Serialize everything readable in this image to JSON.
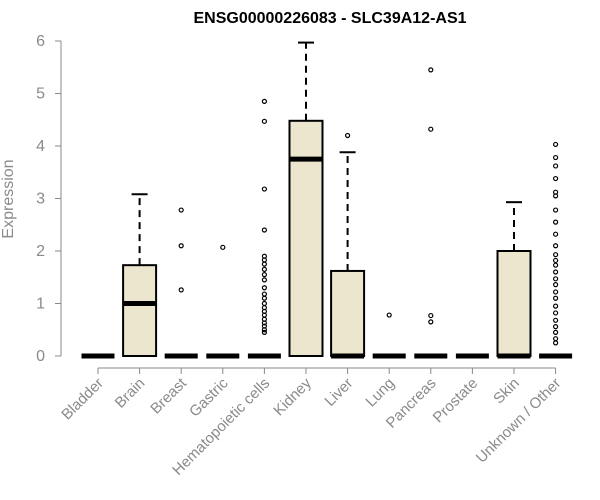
{
  "chart_data": {
    "type": "boxplot",
    "title": "ENSG00000226083 - SLC39A12-AS1",
    "xlabel": "",
    "ylabel": "Expression",
    "ylim": [
      0,
      6
    ],
    "yticks": [
      0,
      1,
      2,
      3,
      4,
      5,
      6
    ],
    "box_fill": "#ede6cf",
    "categories": [
      "Bladder",
      "Brain",
      "Breast",
      "Gastric",
      "Hematopoietic cells",
      "Kidney",
      "Liver",
      "Lung",
      "Pancreas",
      "Prostate",
      "Skin",
      "Unknown / Other"
    ],
    "boxes": [
      {
        "q1": 0,
        "median": 0,
        "q3": 0,
        "whisker_low": 0,
        "whisker_high": 0,
        "outliers": []
      },
      {
        "q1": 0,
        "median": 1.0,
        "q3": 1.73,
        "whisker_low": 0,
        "whisker_high": 3.08,
        "outliers": []
      },
      {
        "q1": 0,
        "median": 0,
        "q3": 0,
        "whisker_low": 0,
        "whisker_high": 0,
        "outliers": [
          2.78,
          2.1,
          1.26
        ]
      },
      {
        "q1": 0,
        "median": 0,
        "q3": 0,
        "whisker_low": 0,
        "whisker_high": 0,
        "outliers": [
          2.07
        ]
      },
      {
        "q1": 0,
        "median": 0,
        "q3": 0,
        "whisker_low": 0,
        "whisker_high": 0,
        "outliers": [
          4.85,
          4.47,
          3.18,
          2.4,
          1.9,
          1.83,
          1.75,
          1.65,
          1.55,
          1.45,
          1.3,
          1.18,
          1.1,
          1.0,
          0.92,
          0.85,
          0.78,
          0.7,
          0.63,
          0.57,
          0.5,
          0.45
        ]
      },
      {
        "q1": 0,
        "median": 3.75,
        "q3": 4.48,
        "whisker_low": 0,
        "whisker_high": 5.97,
        "outliers": []
      },
      {
        "q1": 0,
        "median": 0,
        "q3": 1.62,
        "whisker_low": 0,
        "whisker_high": 3.88,
        "outliers": [
          4.2
        ]
      },
      {
        "q1": 0,
        "median": 0,
        "q3": 0,
        "whisker_low": 0,
        "whisker_high": 0,
        "outliers": [
          0.78
        ]
      },
      {
        "q1": 0,
        "median": 0,
        "q3": 0,
        "whisker_low": 0,
        "whisker_high": 0,
        "outliers": [
          5.45,
          4.32,
          0.77,
          0.65
        ]
      },
      {
        "q1": 0,
        "median": 0,
        "q3": 0,
        "whisker_low": 0,
        "whisker_high": 0,
        "outliers": []
      },
      {
        "q1": 0,
        "median": 0,
        "q3": 2.0,
        "whisker_low": 0,
        "whisker_high": 2.93,
        "outliers": []
      },
      {
        "q1": 0,
        "median": 0,
        "q3": 0,
        "whisker_low": 0,
        "whisker_high": 0,
        "outliers": [
          4.03,
          3.78,
          3.62,
          3.38,
          3.12,
          3.05,
          2.78,
          2.55,
          2.32,
          2.1,
          1.93,
          1.82,
          1.73,
          1.6,
          1.47,
          1.36,
          1.22,
          1.1,
          0.95,
          0.82,
          0.68,
          0.56,
          0.45,
          0.33,
          0.25
        ]
      }
    ]
  }
}
